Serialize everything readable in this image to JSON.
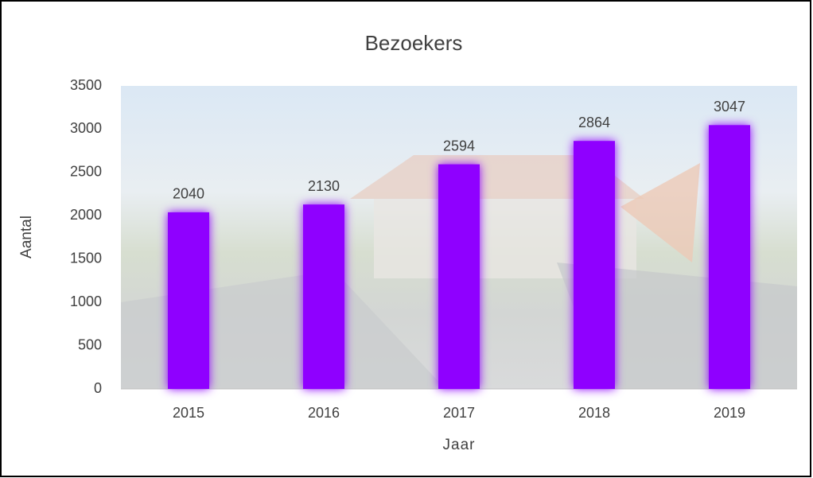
{
  "chart_data": {
    "type": "bar",
    "title": "Bezoekers",
    "x_label": "Jaar",
    "y_label": "Aantal",
    "categories": [
      "2015",
      "2016",
      "2017",
      "2018",
      "2019"
    ],
    "values": [
      2040,
      2130,
      2594,
      2864,
      3047
    ],
    "color": "#8f00ff",
    "ylim": [
      0,
      3500
    ],
    "yticks": [
      0,
      500,
      1000,
      1500,
      2000,
      2500,
      3000,
      3500
    ],
    "grid": false
  }
}
